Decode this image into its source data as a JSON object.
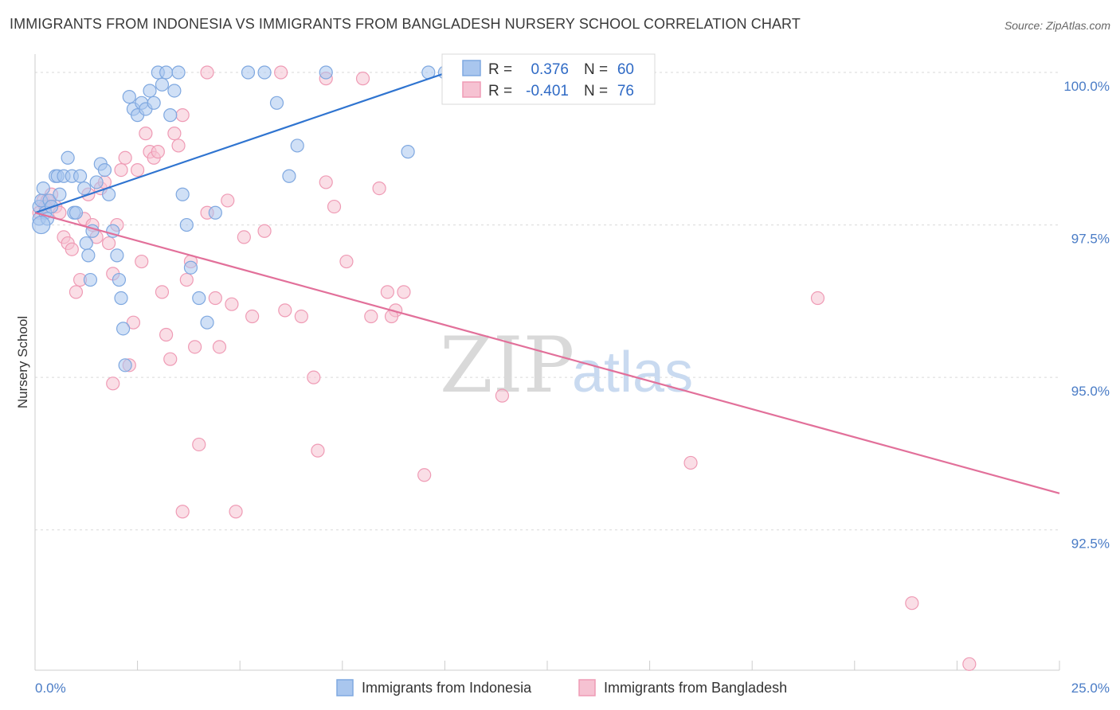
{
  "title": "IMMIGRANTS FROM INDONESIA VS IMMIGRANTS FROM BANGLADESH NURSERY SCHOOL CORRELATION CHART",
  "source": "Source: ZipAtlas.com",
  "watermark": {
    "zip": "ZIP",
    "atlas": "atlas"
  },
  "chart_data": {
    "type": "scatter",
    "title": "IMMIGRANTS FROM INDONESIA VS IMMIGRANTS FROM BANGLADESH NURSERY SCHOOL CORRELATION CHART",
    "xlabel": "",
    "ylabel": "Nursery School",
    "xlim": [
      0,
      25
    ],
    "ylim": [
      90.2,
      100.3
    ],
    "x_ticks": [
      {
        "v": 0,
        "label": "0.0%"
      },
      {
        "v": 25,
        "label": "25.0%"
      }
    ],
    "y_ticks": [
      {
        "v": 100.0,
        "label": "100.0%"
      },
      {
        "v": 97.5,
        "label": "97.5%"
      },
      {
        "v": 95.0,
        "label": "95.0%"
      },
      {
        "v": 92.5,
        "label": "92.5%"
      }
    ],
    "legend": {
      "rows": [
        {
          "r_label": "R =",
          "r_value": "0.376",
          "n_label": "N =",
          "n_value": "60"
        },
        {
          "r_label": "R =",
          "r_value": "-0.401",
          "n_label": "N =",
          "n_value": "76"
        }
      ]
    },
    "series": [
      {
        "name": "Immigrants from Indonesia",
        "color": "#7fa8e0",
        "fill": "#a9c6ee",
        "line_color": "#2f74d0",
        "trend": [
          [
            0,
            97.7
          ],
          [
            10.5,
            100.1
          ]
        ],
        "points": [
          [
            0.1,
            97.6
          ],
          [
            0.1,
            97.8
          ],
          [
            0.15,
            97.9
          ],
          [
            0.2,
            98.1
          ],
          [
            0.25,
            97.7
          ],
          [
            0.3,
            97.6
          ],
          [
            0.35,
            97.9
          ],
          [
            0.4,
            97.8
          ],
          [
            0.5,
            98.3
          ],
          [
            0.55,
            98.3
          ],
          [
            0.6,
            98.0
          ],
          [
            0.7,
            98.3
          ],
          [
            0.8,
            98.6
          ],
          [
            0.9,
            98.3
          ],
          [
            0.95,
            97.7
          ],
          [
            1.0,
            97.7
          ],
          [
            1.1,
            98.3
          ],
          [
            1.2,
            98.1
          ],
          [
            1.25,
            97.2
          ],
          [
            1.3,
            97.0
          ],
          [
            1.35,
            96.6
          ],
          [
            1.4,
            97.4
          ],
          [
            1.5,
            98.2
          ],
          [
            1.6,
            98.5
          ],
          [
            1.7,
            98.4
          ],
          [
            1.8,
            98.0
          ],
          [
            1.9,
            97.4
          ],
          [
            2.0,
            97.0
          ],
          [
            2.05,
            96.6
          ],
          [
            2.1,
            96.3
          ],
          [
            2.15,
            95.8
          ],
          [
            2.2,
            95.2
          ],
          [
            2.3,
            99.6
          ],
          [
            2.4,
            99.4
          ],
          [
            2.5,
            99.3
          ],
          [
            2.6,
            99.5
          ],
          [
            2.7,
            99.4
          ],
          [
            2.8,
            99.7
          ],
          [
            2.9,
            99.5
          ],
          [
            3.0,
            100.0
          ],
          [
            3.1,
            99.8
          ],
          [
            3.2,
            100.0
          ],
          [
            3.3,
            99.3
          ],
          [
            3.4,
            99.7
          ],
          [
            3.5,
            100.0
          ],
          [
            3.6,
            98.0
          ],
          [
            3.7,
            97.5
          ],
          [
            3.8,
            96.8
          ],
          [
            4.0,
            96.3
          ],
          [
            4.2,
            95.9
          ],
          [
            4.4,
            97.7
          ],
          [
            5.2,
            100.0
          ],
          [
            5.6,
            100.0
          ],
          [
            5.9,
            99.5
          ],
          [
            6.2,
            98.3
          ],
          [
            6.4,
            98.8
          ],
          [
            7.1,
            100.0
          ],
          [
            9.1,
            98.7
          ],
          [
            9.6,
            100.0
          ],
          [
            10.0,
            100.0
          ]
        ],
        "big_point": [
          0.15,
          97.5
        ]
      },
      {
        "name": "Immigrants from Bangladesh",
        "color": "#ef9bb5",
        "fill": "#f6c2d2",
        "line_color": "#e2709a",
        "trend": [
          [
            0,
            97.7
          ],
          [
            25,
            93.1
          ]
        ],
        "points": [
          [
            0.1,
            97.7
          ],
          [
            0.2,
            97.9
          ],
          [
            0.3,
            97.9
          ],
          [
            0.4,
            98.0
          ],
          [
            0.5,
            97.8
          ],
          [
            0.6,
            97.7
          ],
          [
            0.7,
            97.3
          ],
          [
            0.8,
            97.2
          ],
          [
            0.9,
            97.1
          ],
          [
            1.0,
            96.4
          ],
          [
            1.1,
            96.6
          ],
          [
            1.2,
            97.6
          ],
          [
            1.3,
            98.0
          ],
          [
            1.4,
            97.5
          ],
          [
            1.5,
            97.3
          ],
          [
            1.6,
            98.1
          ],
          [
            1.7,
            98.2
          ],
          [
            1.8,
            97.2
          ],
          [
            1.9,
            96.7
          ],
          [
            2.0,
            97.5
          ],
          [
            2.1,
            98.4
          ],
          [
            2.2,
            98.6
          ],
          [
            2.3,
            95.2
          ],
          [
            2.4,
            95.9
          ],
          [
            2.5,
            98.4
          ],
          [
            2.6,
            96.9
          ],
          [
            2.7,
            99.0
          ],
          [
            2.8,
            98.7
          ],
          [
            2.9,
            98.6
          ],
          [
            3.0,
            98.7
          ],
          [
            3.1,
            96.4
          ],
          [
            3.2,
            95.7
          ],
          [
            3.3,
            95.3
          ],
          [
            3.4,
            99.0
          ],
          [
            3.5,
            98.8
          ],
          [
            3.6,
            92.8
          ],
          [
            3.7,
            96.6
          ],
          [
            3.8,
            96.9
          ],
          [
            3.9,
            95.5
          ],
          [
            4.0,
            93.9
          ],
          [
            4.2,
            97.7
          ],
          [
            4.4,
            96.3
          ],
          [
            4.5,
            95.5
          ],
          [
            4.7,
            97.9
          ],
          [
            4.8,
            96.2
          ],
          [
            4.9,
            92.8
          ],
          [
            5.1,
            97.3
          ],
          [
            5.3,
            96.0
          ],
          [
            5.6,
            97.4
          ],
          [
            6.1,
            96.1
          ],
          [
            6.5,
            96.0
          ],
          [
            6.8,
            95.0
          ],
          [
            6.9,
            93.8
          ],
          [
            7.1,
            98.2
          ],
          [
            7.3,
            97.8
          ],
          [
            7.6,
            96.9
          ],
          [
            8.0,
            99.9
          ],
          [
            8.2,
            96.0
          ],
          [
            8.4,
            98.1
          ],
          [
            8.6,
            96.4
          ],
          [
            8.8,
            96.1
          ],
          [
            9.0,
            96.4
          ],
          [
            9.5,
            93.4
          ],
          [
            10.3,
            100.0
          ],
          [
            11.4,
            94.7
          ],
          [
            16.0,
            93.6
          ],
          [
            19.1,
            96.3
          ],
          [
            21.4,
            91.3
          ],
          [
            22.8,
            90.3
          ],
          [
            4.2,
            100.0
          ],
          [
            6.0,
            100.0
          ],
          [
            7.1,
            99.9
          ],
          [
            1.9,
            94.9
          ],
          [
            8.7,
            96.0
          ],
          [
            0.25,
            97.8
          ],
          [
            3.6,
            99.3
          ]
        ]
      }
    ]
  },
  "bottom_legend": [
    {
      "label": "Immigrants from Indonesia"
    },
    {
      "label": "Immigrants from Bangladesh"
    }
  ]
}
